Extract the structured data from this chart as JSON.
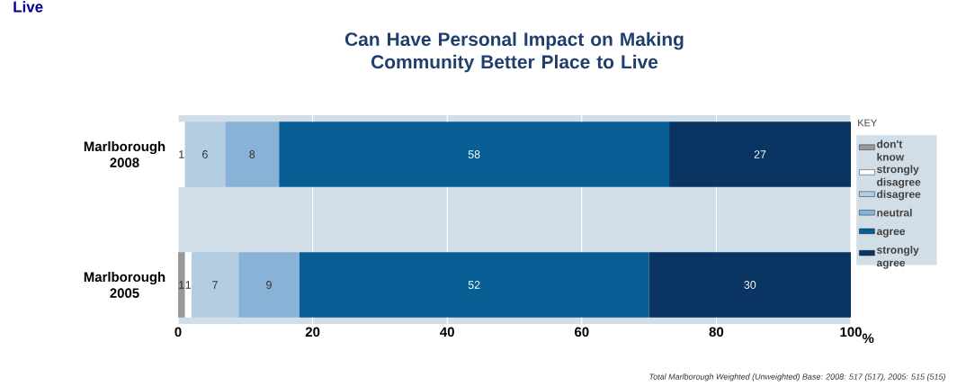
{
  "chart_data": {
    "type": "bar",
    "orientation": "horizontal",
    "stacked": true,
    "title": "Can Have Personal Impact on Making Community Better Place to Live",
    "xlabel": "%",
    "legend_title": "KEY",
    "categories": [
      "Marlborough 2008",
      "Marlborough 2005"
    ],
    "series": [
      {
        "name": "don't know",
        "color": "#999999",
        "values": [
          0,
          1
        ],
        "value_labels": [
          null,
          "1"
        ]
      },
      {
        "name": "strongly disagree",
        "color": "#ffffff",
        "values": [
          1,
          1
        ],
        "value_labels": [
          "1",
          "1"
        ]
      },
      {
        "name": "disagree",
        "color": "#b3cde3",
        "values": [
          6,
          7
        ],
        "value_labels": [
          "6",
          "7"
        ]
      },
      {
        "name": "neutral",
        "color": "#89b3d6",
        "values": [
          8,
          9
        ],
        "value_labels": [
          "8",
          "9"
        ]
      },
      {
        "name": "agree",
        "color": "#065e94",
        "values": [
          58,
          52
        ],
        "value_labels": [
          "58",
          "52"
        ]
      },
      {
        "name": "strongly agree",
        "color": "#0a3461",
        "values": [
          27,
          30
        ],
        "value_labels": [
          "27",
          "30"
        ]
      }
    ],
    "xlim": [
      0,
      100
    ],
    "xticks": [
      0,
      20,
      40,
      60,
      80,
      100
    ],
    "grid": "x",
    "legend": "right",
    "annotations": [
      "Total Marlborough Weighted (Unweighted) Base: 2008: 517 (517), 2005: 515 (515)",
      "Live"
    ]
  }
}
